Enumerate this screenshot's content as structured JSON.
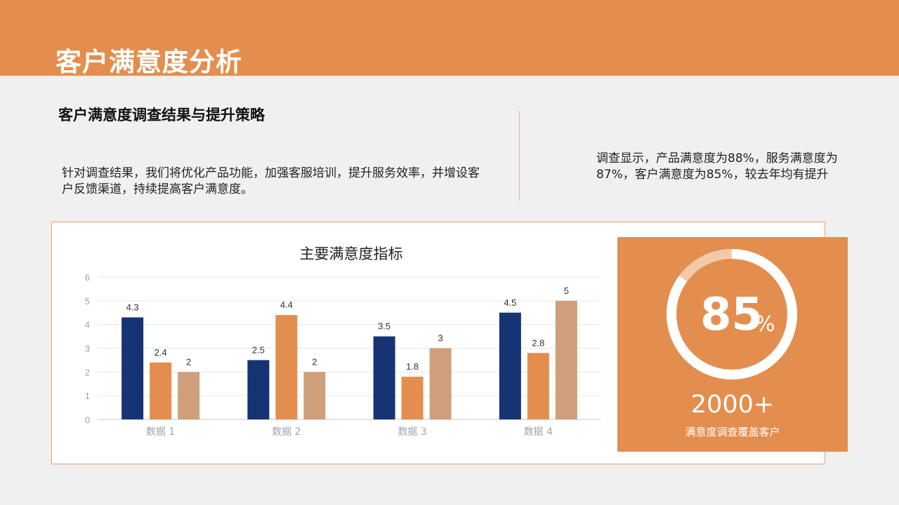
{
  "header": {
    "title": "客户满意度分析"
  },
  "left": {
    "heading": "客户满意度调查结果与提升策略",
    "text": "针对调查结果，我们将优化产品功能，加强客服培训，提升服务效率，并增设客户反馈渠道，持续提高客户满意度。"
  },
  "right": {
    "text": "调查显示，产品满意度为88%，服务满意度为87%，客户满意度为85%，较去年均有提升"
  },
  "chart_data": {
    "type": "bar",
    "title": "主要满意度指标",
    "categories": [
      "数据 1",
      "数据 2",
      "数据 3",
      "数据 4"
    ],
    "series": [
      {
        "values": [
          4.3,
          2.5,
          3.5,
          4.5
        ],
        "color": "#163374"
      },
      {
        "values": [
          2.4,
          4.4,
          1.8,
          2.8
        ],
        "color": "#e38e4e"
      },
      {
        "values": [
          2,
          2,
          3,
          5
        ],
        "color": "#cf9f7c"
      }
    ],
    "ylim": [
      0,
      6
    ],
    "yticks": [
      0,
      1,
      2,
      3,
      4,
      5,
      6
    ],
    "xlabel": "",
    "ylabel": "",
    "grid": true,
    "legend": "none",
    "data_labels": true
  },
  "stat": {
    "value": "85",
    "unit": "%",
    "ring_fraction": 0.85,
    "count": "2000+",
    "caption": "满意度调查覆盖客户"
  },
  "colors": {
    "accent": "#e38e4e",
    "navy": "#163374",
    "tan": "#cf9f7c",
    "background": "#f0f0f0"
  }
}
